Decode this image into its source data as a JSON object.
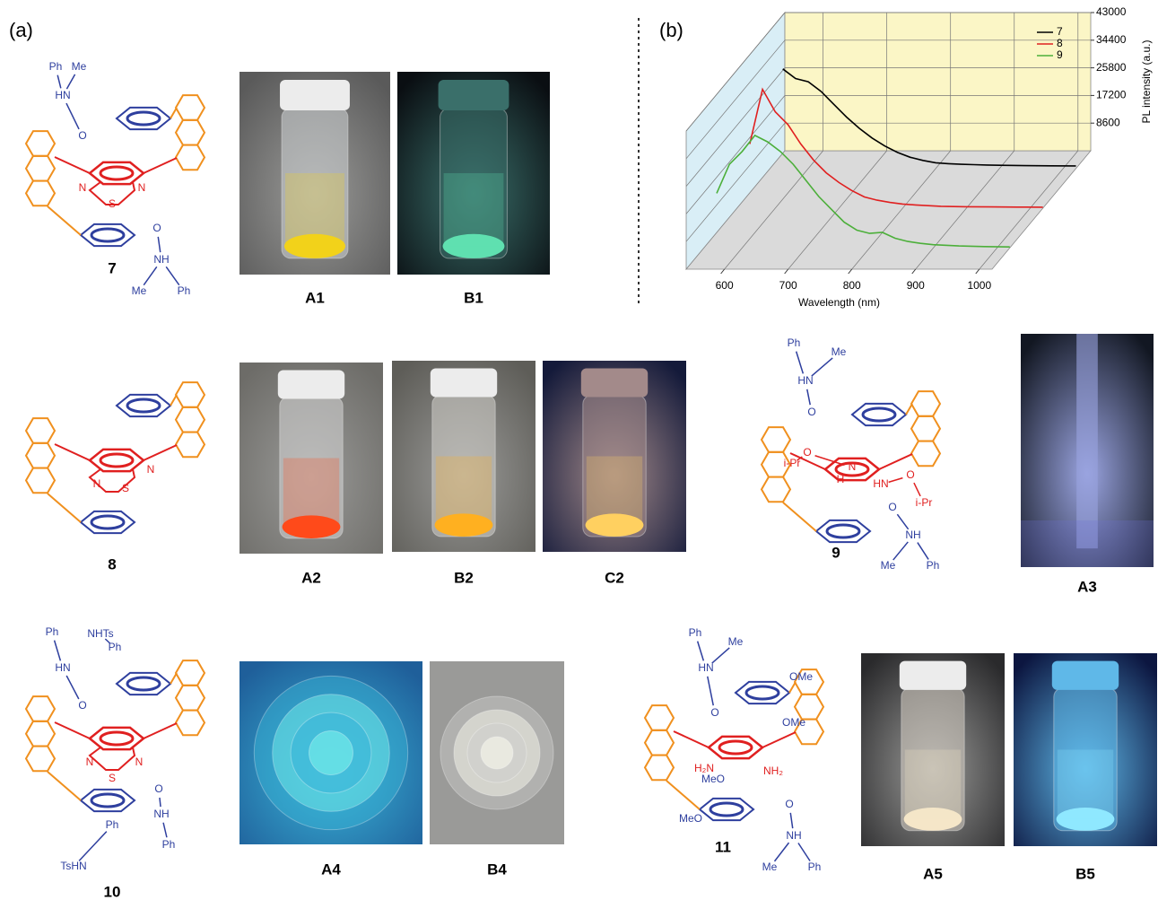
{
  "panel_labels": [
    "(a)",
    "(b)"
  ],
  "compounds": [
    {
      "label": "7",
      "atoms": [
        "Ph",
        "Me",
        "HN",
        "O",
        "N",
        "S",
        "N",
        "O",
        "NH",
        "Me",
        "Ph"
      ]
    },
    {
      "label": "8",
      "atoms": [
        "N",
        "S",
        "N"
      ]
    },
    {
      "label": "9",
      "atoms": [
        "Ph",
        "Me",
        "HN",
        "O",
        "O",
        "i-Pr",
        "N",
        "H",
        "HN",
        "O",
        "i-Pr",
        "O",
        "NH",
        "Me",
        "Ph"
      ]
    },
    {
      "label": "10",
      "atoms": [
        "NHTs",
        "Ph",
        "Ph",
        "HN",
        "O",
        "N",
        "S",
        "N",
        "O",
        "NH",
        "Ph",
        "Ph",
        "TsHN"
      ]
    },
    {
      "label": "11",
      "atoms": [
        "Ph",
        "Me",
        "HN",
        "OMe",
        "O",
        "OMe",
        "H₂N",
        "NH₂",
        "MeO",
        "MeO",
        "O",
        "NH",
        "Me",
        "Ph"
      ]
    }
  ],
  "photos": [
    "A1",
    "B1",
    "A2",
    "B2",
    "C2",
    "A3",
    "A4",
    "B4",
    "A5",
    "B5"
  ],
  "chart_data": {
    "type": "line",
    "x_label": "Wavelength (nm)",
    "y_label": "PL intensity (a.u.)",
    "x": [
      560,
      580,
      600,
      620,
      640,
      660,
      680,
      700,
      720,
      740,
      760,
      780,
      800,
      820,
      840,
      860,
      880,
      900,
      940,
      980,
      1020
    ],
    "series": [
      {
        "name": "7",
        "color": "#000000",
        "values": [
          31000,
          28000,
          27000,
          24000,
          20000,
          16000,
          12500,
          9500,
          7000,
          5000,
          3500,
          2500,
          1800,
          1500,
          1300,
          1200,
          1100,
          1000,
          900,
          850,
          800
        ]
      },
      {
        "name": "8",
        "color": "#e02020",
        "values": [
          20000,
          37000,
          30000,
          26000,
          20000,
          15000,
          11000,
          8000,
          5500,
          3500,
          2500,
          1800,
          1300,
          1000,
          800,
          600,
          500,
          450,
          400,
          350,
          300
        ]
      },
      {
        "name": "9",
        "color": "#4caf3a",
        "values": [
          17000,
          26000,
          30000,
          35000,
          33000,
          30000,
          26000,
          21000,
          16000,
          12000,
          8000,
          5500,
          4500,
          4800,
          3000,
          2000,
          1400,
          1000,
          600,
          400,
          300
        ]
      }
    ],
    "xlim": [
      540,
      1020
    ],
    "ylim": [
      0,
      43000
    ],
    "xticks": [
      600,
      700,
      800,
      900,
      1000
    ],
    "yticks": [
      8600,
      17200,
      25800,
      34400,
      43000
    ],
    "grid": true,
    "legend": "upper right"
  }
}
